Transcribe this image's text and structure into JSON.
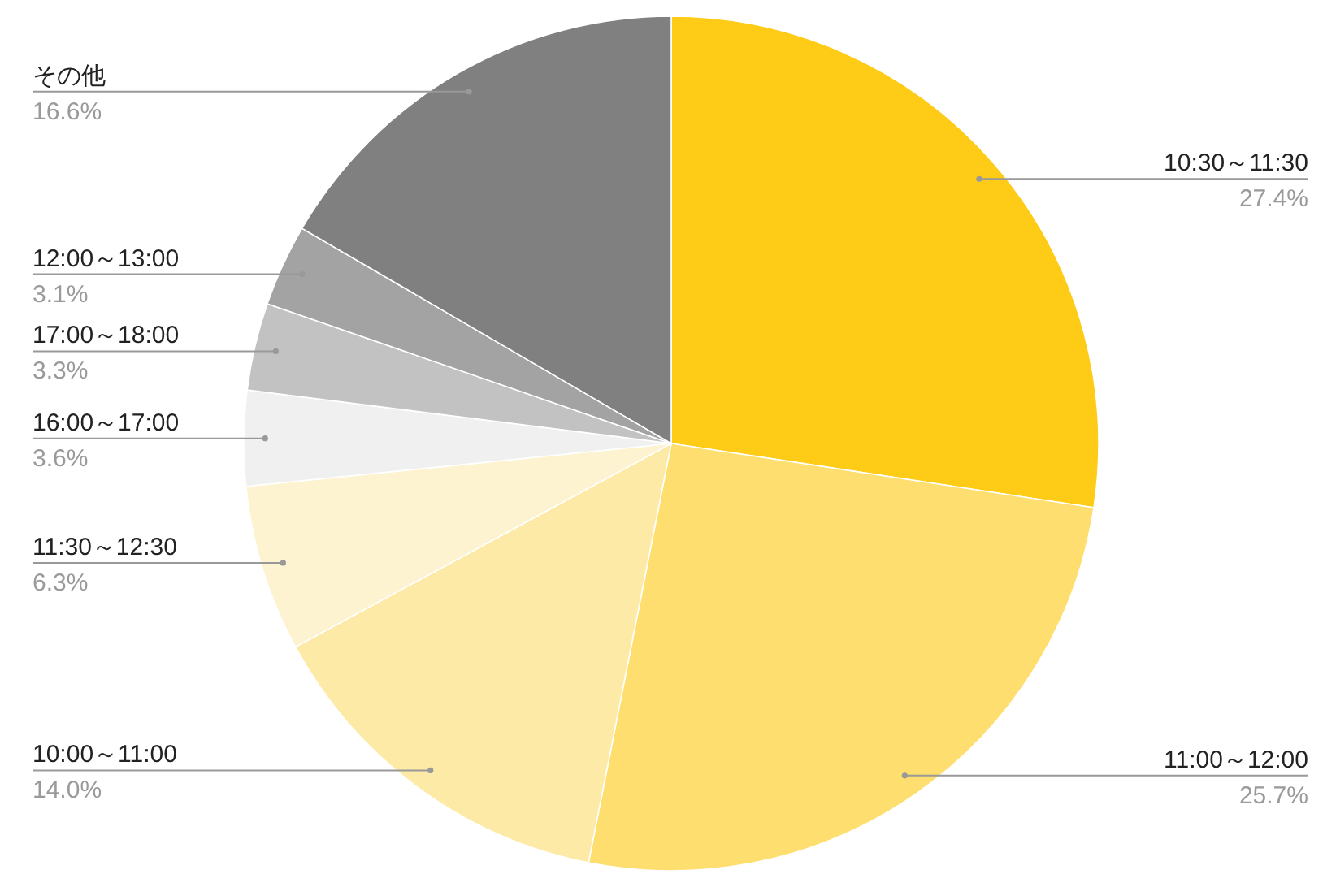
{
  "chart_data": {
    "type": "pie",
    "categories": [
      "10:30～11:30",
      "11:00～12:00",
      "10:00～11:00",
      "11:30～12:30",
      "16:00～17:00",
      "17:00～18:00",
      "12:00～13:00",
      "その他"
    ],
    "values": [
      27.4,
      25.7,
      14.0,
      6.3,
      3.6,
      3.3,
      3.1,
      16.6
    ],
    "colors": [
      "#fecb17",
      "#fdde6e",
      "#fdeaa7",
      "#fdf3d0",
      "#f0f0f0",
      "#c2c2c2",
      "#a3a3a3",
      "#808080"
    ],
    "value_labels": [
      "27.4%",
      "25.7%",
      "14.0%",
      "6.3%",
      "3.6%",
      "3.3%",
      "3.1%",
      "16.6%"
    ]
  }
}
